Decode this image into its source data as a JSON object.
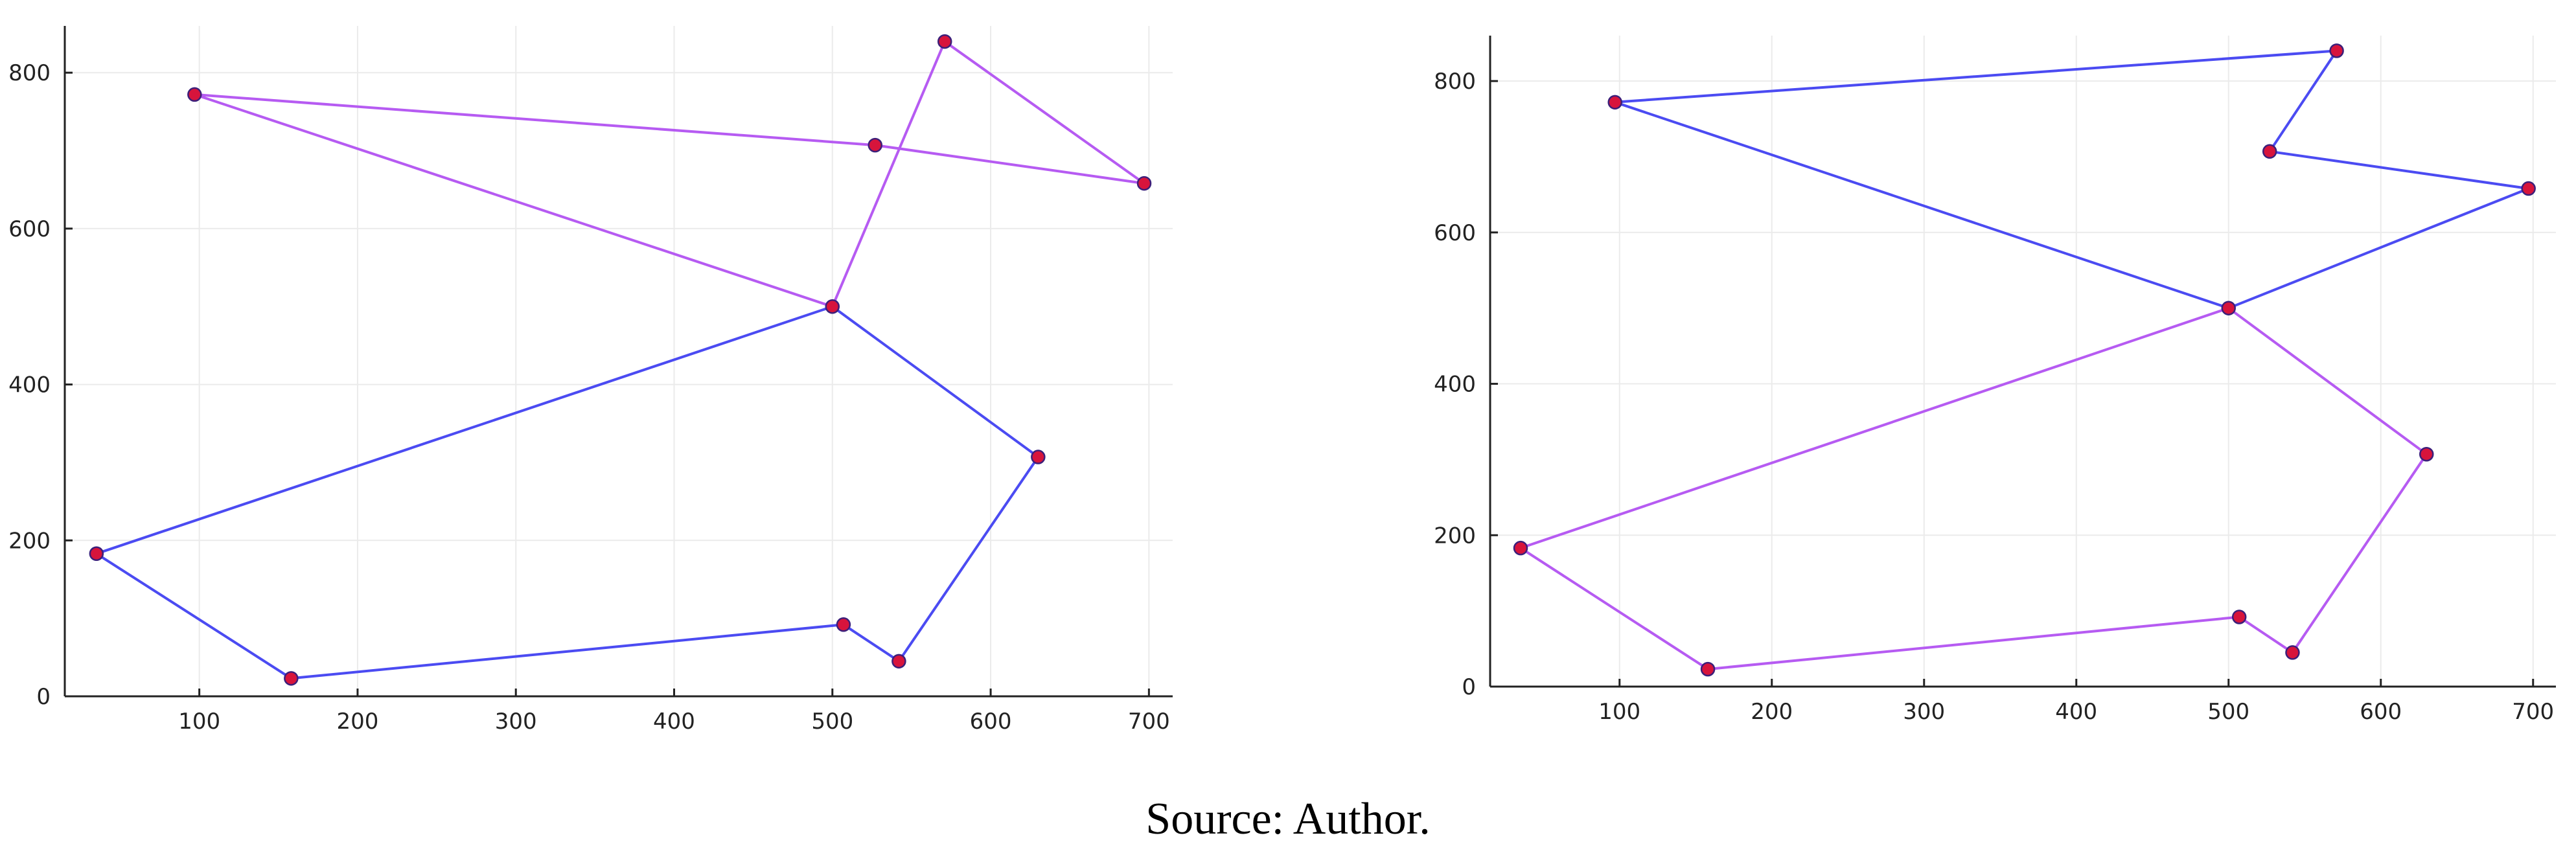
{
  "caption": "Source: Author.",
  "colors": {
    "segment_a": "#4b4bf2",
    "segment_b": "#b65bf2",
    "marker_fill": "#d7143c",
    "marker_stroke": "#3c1f7a",
    "grid": "#ebebeb",
    "axis": "#222222"
  },
  "chart_data": [
    {
      "type": "line",
      "title": "",
      "xlabel": "",
      "ylabel": "",
      "xlim": [
        15,
        715
      ],
      "ylim": [
        0,
        860
      ],
      "xticks": [
        100,
        200,
        300,
        400,
        500,
        600,
        700
      ],
      "yticks": [
        0,
        200,
        400,
        600,
        800
      ],
      "grid": true,
      "legend": "none",
      "series": [
        {
          "color": "#4b4bf2",
          "x": [
            542,
            630,
            500,
            35,
            158,
            507,
            542
          ],
          "y": [
            45,
            307,
            500,
            183,
            23,
            92,
            45
          ]
        },
        {
          "color": "#b65bf2",
          "x": [
            500,
            571,
            697,
            527,
            97,
            500
          ],
          "y": [
            500,
            840,
            658,
            707,
            772,
            500
          ]
        }
      ],
      "points": {
        "x": [
          97,
          527,
          571,
          697,
          500,
          630,
          35,
          158,
          507,
          542
        ],
        "y": [
          772,
          707,
          840,
          658,
          500,
          307,
          183,
          23,
          92,
          45
        ]
      }
    },
    {
      "type": "line",
      "title": "",
      "xlabel": "",
      "ylabel": "",
      "xlim": [
        15,
        715
      ],
      "ylim": [
        0,
        860
      ],
      "xticks": [
        100,
        200,
        300,
        400,
        500,
        600,
        700
      ],
      "yticks": [
        0,
        200,
        400,
        600,
        800
      ],
      "grid": true,
      "legend": "none",
      "series": [
        {
          "color": "#4b4bf2",
          "x": [
            500,
            97,
            571,
            527,
            697,
            500
          ],
          "y": [
            500,
            772,
            840,
            707,
            658,
            500
          ]
        },
        {
          "color": "#b65bf2",
          "x": [
            500,
            630,
            542,
            507,
            158,
            35,
            500
          ],
          "y": [
            500,
            307,
            45,
            92,
            23,
            183,
            500
          ]
        }
      ],
      "points": {
        "x": [
          97,
          527,
          571,
          697,
          500,
          630,
          35,
          158,
          507,
          542
        ],
        "y": [
          772,
          707,
          840,
          658,
          500,
          307,
          183,
          23,
          92,
          45
        ]
      }
    }
  ]
}
